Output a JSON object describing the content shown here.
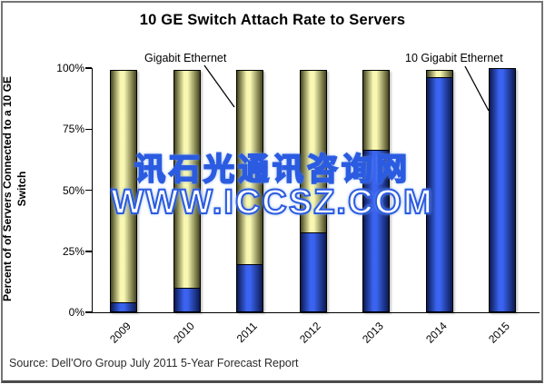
{
  "title": "10 GE Switch Attach Rate to Servers",
  "y_axis": {
    "title_line1": "Percent of of Servers Connected to a 10 GE",
    "title_line2": "Switch"
  },
  "annotations": {
    "gigabit_label": "Gigabit Ethernet",
    "ten_gigabit_label": "10 Gigabit Ethernet"
  },
  "watermark": {
    "line1": "讯石光通讯咨询网",
    "line2": "WWW.ICCSZ.COM",
    "color": "#2b5be0"
  },
  "source": "Source: Dell'Oro Group July 2011 5-Year Forecast Report",
  "colors": {
    "gigabit_light": "#f8f8b2",
    "gigabit_dark": "#45451f",
    "ten_gigabit_light": "#3a63f0",
    "ten_gigabit_dark": "#0c1a50",
    "axis": "#000000",
    "frame_border": "#757575"
  },
  "chart_data": {
    "type": "bar",
    "stacked": true,
    "categories": [
      "2009",
      "2010",
      "2011",
      "2012",
      "2013",
      "2014",
      "2015"
    ],
    "series": [
      {
        "name": "10 Gigabit Ethernet",
        "values": [
          4,
          10,
          20,
          33,
          67,
          97,
          100
        ],
        "color": "#3a63f0"
      },
      {
        "name": "Gigabit Ethernet",
        "values": [
          96,
          90,
          80,
          67,
          33,
          3,
          0
        ],
        "color": "#f8f8b2"
      }
    ],
    "title": "10 GE Switch Attach Rate to Servers",
    "xlabel": "",
    "ylabel": "Percent of of Servers Connected to a 10 GE Switch",
    "ylim": [
      0,
      100
    ],
    "yticks": [
      0,
      25,
      50,
      75,
      100
    ],
    "ytick_labels": [
      "0%",
      "25%",
      "50%",
      "75%",
      "100%"
    ],
    "grid": false,
    "legend_position": "inline-annotations"
  }
}
